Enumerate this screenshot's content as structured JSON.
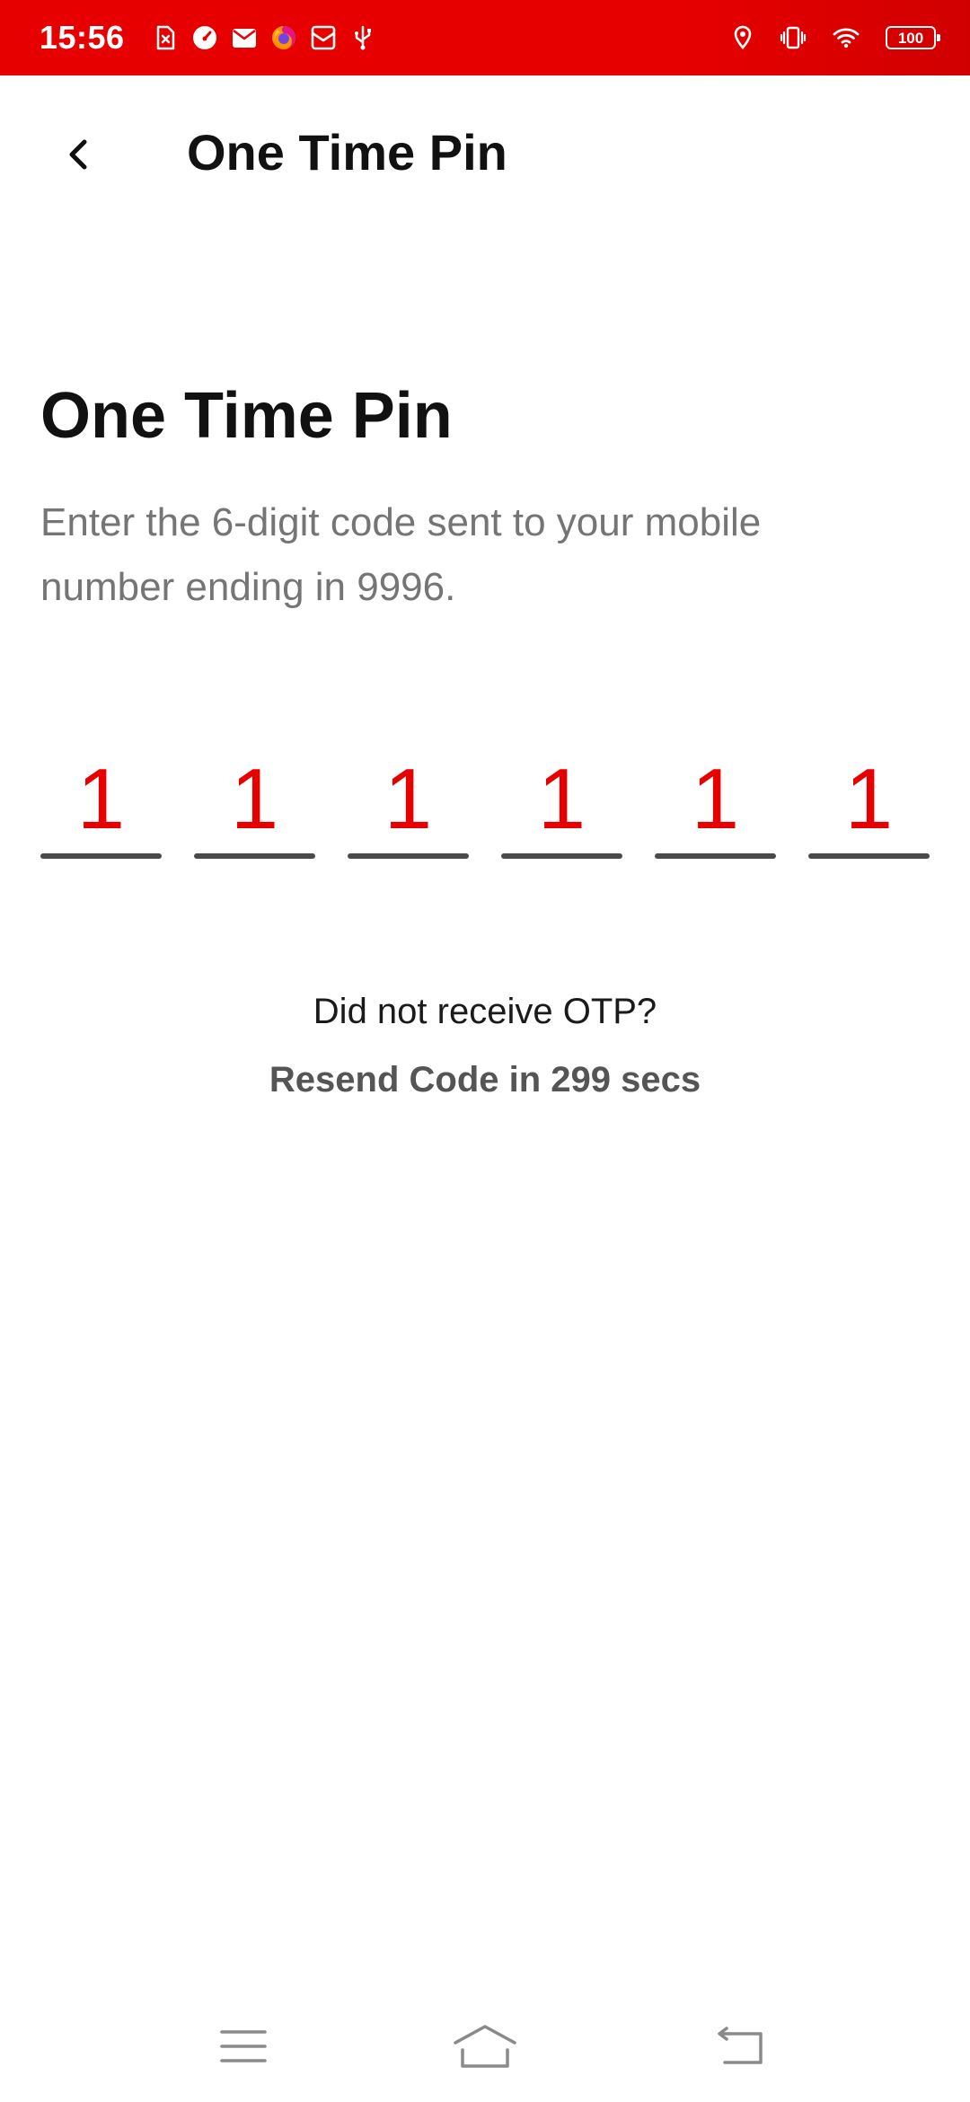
{
  "status_bar": {
    "time": "15:56",
    "battery": "100",
    "background_color": "#e60000",
    "left_icons": [
      "sim-error-icon",
      "speedometer-icon",
      "mail-icon",
      "firefox-icon",
      "inbox-icon",
      "usb-icon"
    ],
    "right_icons": [
      "location-icon",
      "vibrate-icon",
      "wifi-icon",
      "battery-icon"
    ]
  },
  "app_bar": {
    "title": "One Time Pin",
    "back_icon": "chevron-left-icon"
  },
  "main": {
    "heading": "One Time Pin",
    "subtitle": "Enter the 6-digit code sent to your mobile number ending in 9996.",
    "otp_digits": [
      "1",
      "1",
      "1",
      "1",
      "1",
      "1"
    ],
    "otp_digit_color": "#e60000",
    "resend_question": "Did not receive OTP?",
    "resend_timer": "Resend Code in 299 secs"
  },
  "nav_bar": {
    "icons": [
      "menu-icon",
      "home-icon",
      "back-icon"
    ]
  }
}
